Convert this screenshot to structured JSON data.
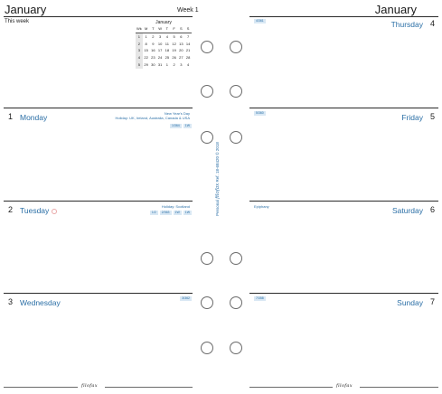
{
  "left_page": {
    "month": "January",
    "week": "Week 1",
    "this_week": "This week",
    "calendar": {
      "title": "January",
      "headers": [
        "Wk",
        "M",
        "T",
        "W",
        "T",
        "F",
        "S",
        "S"
      ],
      "rows": [
        [
          "1",
          "1",
          "2",
          "3",
          "4",
          "5",
          "6",
          "7"
        ],
        [
          "2",
          "8",
          "9",
          "10",
          "11",
          "12",
          "13",
          "14"
        ],
        [
          "3",
          "15",
          "16",
          "17",
          "18",
          "19",
          "20",
          "21"
        ],
        [
          "4",
          "22",
          "23",
          "24",
          "25",
          "26",
          "27",
          "28"
        ],
        [
          "5",
          "29",
          "30",
          "31",
          "1",
          "2",
          "3",
          "4"
        ]
      ]
    },
    "days": [
      {
        "num": "1",
        "name": "Monday",
        "note": [
          "New Year's Day",
          "Holiday: UK, Ireland, Australia, Canada & USA"
        ],
        "tags": [
          "1/364",
          "1W"
        ]
      },
      {
        "num": "2",
        "name": "Tuesday",
        "note": [
          "Holiday: Scotland"
        ],
        "tags": [
          "1/2",
          "2/363",
          "1W",
          "1W"
        ]
      },
      {
        "num": "3",
        "name": "Wednesday",
        "tags": [
          "3/362"
        ]
      }
    ],
    "footer_brand": "filofax"
  },
  "right_page": {
    "month": "January",
    "days": [
      {
        "num": "4",
        "name": "Thursday",
        "tags": [
          "4/361"
        ]
      },
      {
        "num": "5",
        "name": "Friday",
        "tags": [
          "5/360"
        ]
      },
      {
        "num": "6",
        "name": "Saturday",
        "note": [
          "Epiphany"
        ]
      },
      {
        "num": "7",
        "name": "Sunday",
        "tags": [
          "7/358"
        ]
      }
    ],
    "footer_brand": "filofax"
  },
  "spine": {
    "text_a": "Personal",
    "brand": "filofax",
    "text_b": "Ref. 18-68420",
    "copyright": "© 2018"
  },
  "colors": {
    "accent": "#2b6fa6",
    "rule": "#2a2a2a"
  }
}
